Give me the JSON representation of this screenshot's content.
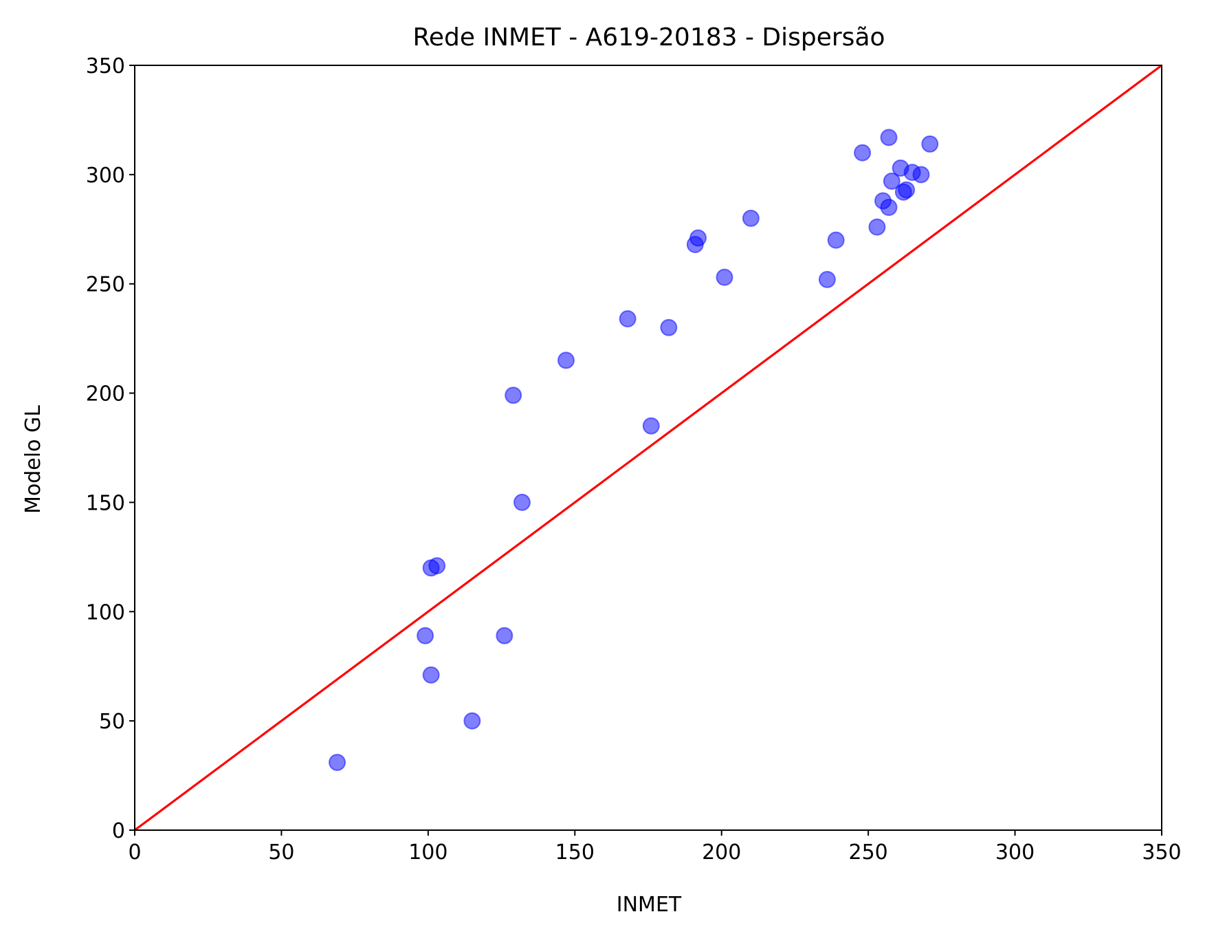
{
  "chart_data": {
    "type": "scatter",
    "title": "Rede INMET - A619-20183 - Dispersão",
    "xlabel": "INMET",
    "ylabel": "Modelo GL",
    "xlim": [
      0,
      350
    ],
    "ylim": [
      0,
      350
    ],
    "xticks": [
      "0",
      "50",
      "100",
      "150",
      "200",
      "250",
      "300",
      "350"
    ],
    "yticks": [
      "0",
      "50",
      "100",
      "150",
      "200",
      "250",
      "300",
      "350"
    ],
    "grid": false,
    "point_color": "#0000ff",
    "point_alpha": 0.5,
    "reference_line": {
      "from": [
        0,
        0
      ],
      "to": [
        350,
        350
      ],
      "color": "#ff0000"
    },
    "points": [
      {
        "x": 69,
        "y": 31
      },
      {
        "x": 99,
        "y": 89
      },
      {
        "x": 101,
        "y": 71
      },
      {
        "x": 101,
        "y": 120
      },
      {
        "x": 103,
        "y": 121
      },
      {
        "x": 115,
        "y": 50
      },
      {
        "x": 126,
        "y": 89
      },
      {
        "x": 129,
        "y": 199
      },
      {
        "x": 132,
        "y": 150
      },
      {
        "x": 147,
        "y": 215
      },
      {
        "x": 168,
        "y": 234
      },
      {
        "x": 176,
        "y": 185
      },
      {
        "x": 182,
        "y": 230
      },
      {
        "x": 191,
        "y": 268
      },
      {
        "x": 192,
        "y": 271
      },
      {
        "x": 201,
        "y": 253
      },
      {
        "x": 210,
        "y": 280
      },
      {
        "x": 236,
        "y": 252
      },
      {
        "x": 239,
        "y": 270
      },
      {
        "x": 248,
        "y": 310
      },
      {
        "x": 253,
        "y": 276
      },
      {
        "x": 255,
        "y": 288
      },
      {
        "x": 257,
        "y": 285
      },
      {
        "x": 257,
        "y": 317
      },
      {
        "x": 258,
        "y": 297
      },
      {
        "x": 261,
        "y": 303
      },
      {
        "x": 262,
        "y": 292
      },
      {
        "x": 263,
        "y": 293
      },
      {
        "x": 265,
        "y": 301
      },
      {
        "x": 268,
        "y": 300
      },
      {
        "x": 271,
        "y": 314
      }
    ]
  }
}
